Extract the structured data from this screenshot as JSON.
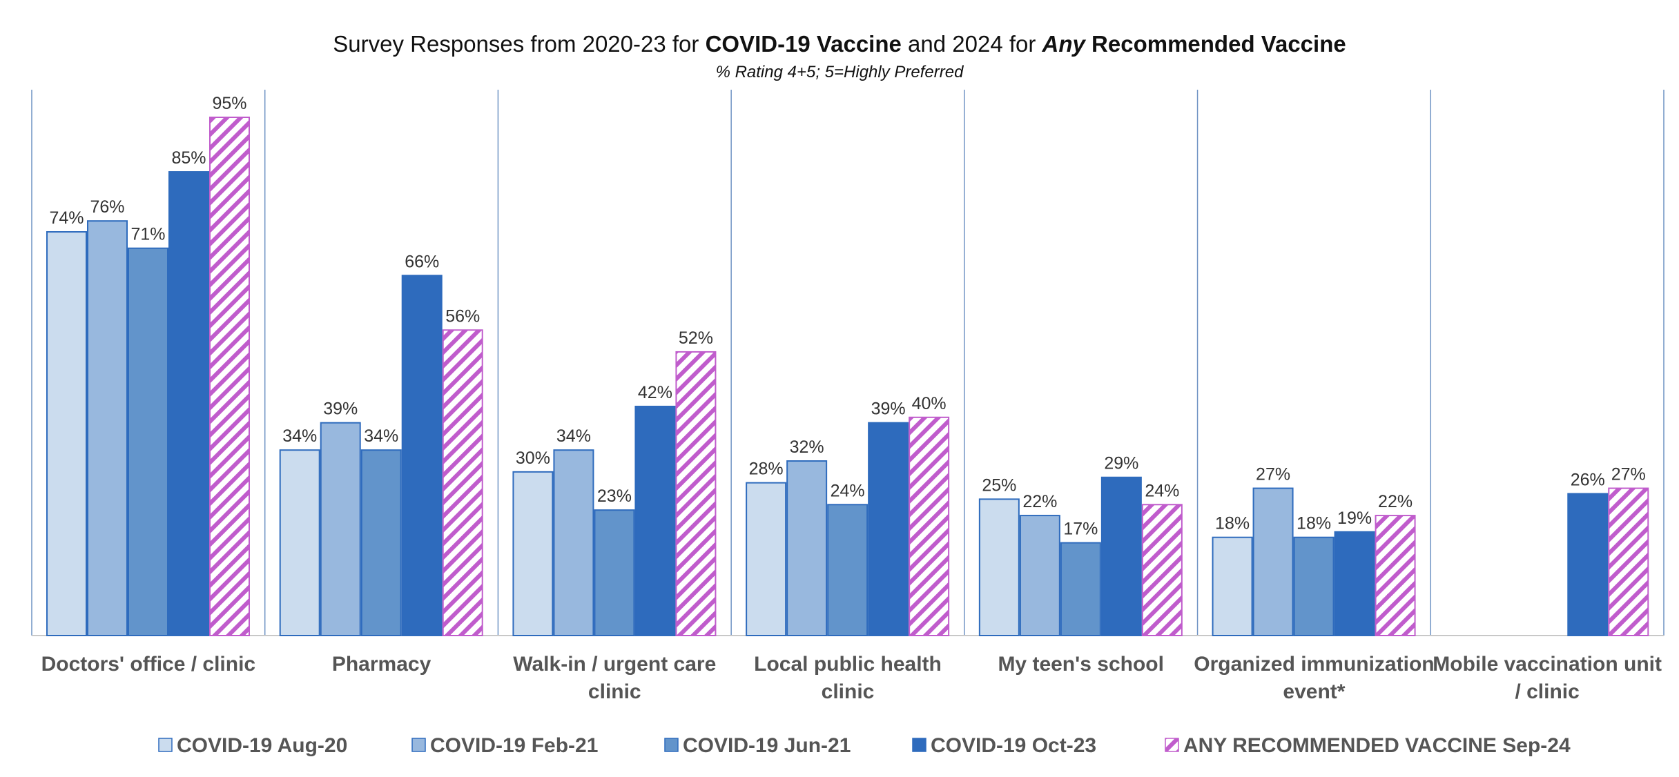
{
  "chart_data": {
    "type": "bar",
    "title_parts": [
      {
        "text": "Survey Responses from 2020-23 for ",
        "bold": false,
        "italic": false
      },
      {
        "text": "COVID-19 Vaccine",
        "bold": true,
        "italic": false
      },
      {
        "text": " and 2024 for ",
        "bold": false,
        "italic": false
      },
      {
        "text": "Any",
        "bold": true,
        "italic": true
      },
      {
        "text": " Recommended Vaccine",
        "bold": true,
        "italic": false
      }
    ],
    "subtitle": "% Rating 4+5; 5=Highly Preferred",
    "ylim": [
      0,
      100
    ],
    "value_suffix": "%",
    "grid": false,
    "legend_position": "bottom",
    "categories": [
      [
        "Doctors' office / clinic"
      ],
      [
        "Pharmacy"
      ],
      [
        "Walk-in / urgent care",
        "clinic"
      ],
      [
        "Local public health",
        "clinic"
      ],
      [
        "My teen's school"
      ],
      [
        "Organized immunization",
        "event*"
      ],
      [
        "Mobile vaccination unit",
        "/ clinic"
      ]
    ],
    "series": [
      {
        "name": "COVID-19 Aug-20",
        "color": "#cbdcee",
        "hatched": false,
        "values": [
          74,
          34,
          30,
          28,
          25,
          18,
          null
        ]
      },
      {
        "name": "COVID-19 Feb-21",
        "color": "#98b8de",
        "hatched": false,
        "values": [
          76,
          39,
          34,
          32,
          22,
          27,
          null
        ]
      },
      {
        "name": "COVID-19 Jun-21",
        "color": "#6294cb",
        "hatched": false,
        "values": [
          71,
          34,
          23,
          24,
          17,
          18,
          null
        ]
      },
      {
        "name": "COVID-19 Oct-23",
        "color": "#2e6bbd",
        "hatched": false,
        "values": [
          85,
          66,
          42,
          39,
          29,
          19,
          26
        ]
      },
      {
        "name": "ANY RECOMMENDED VACCINE Sep-24",
        "color": "#c05ccc",
        "hatched": true,
        "values": [
          95,
          56,
          52,
          40,
          24,
          22,
          27
        ]
      }
    ],
    "colors": {
      "bar_border": "#2e6bbd",
      "divider": "#6f93c4",
      "axis": "#c8c8c8"
    }
  }
}
